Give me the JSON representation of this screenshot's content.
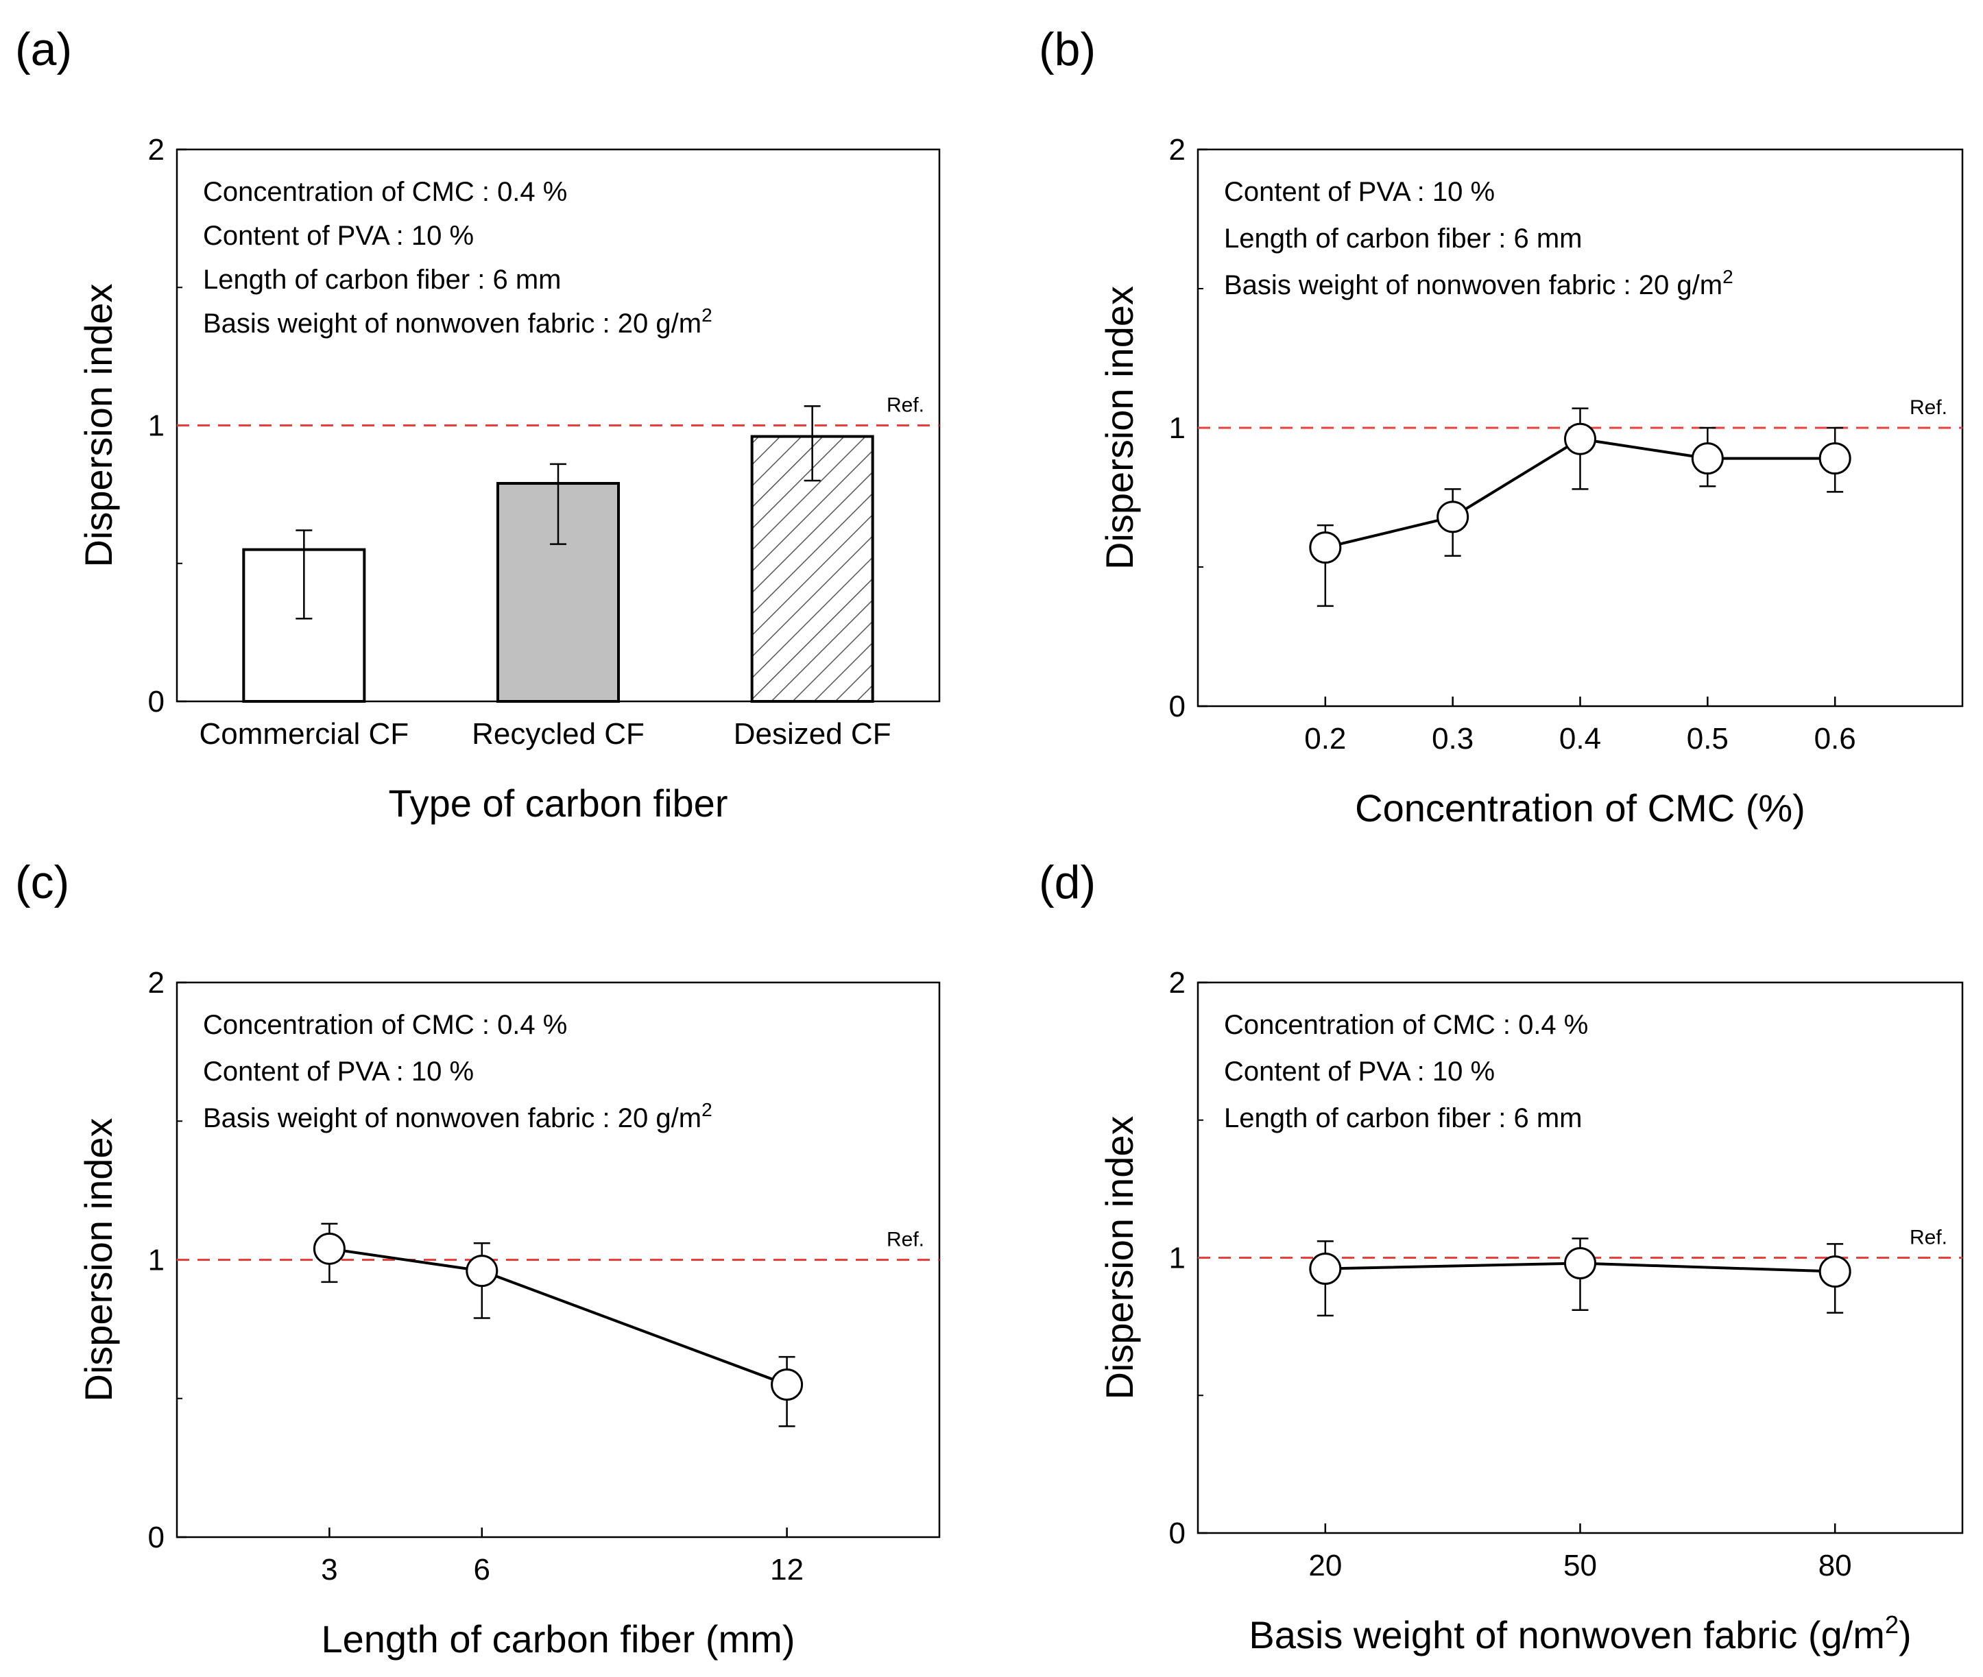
{
  "chart_data": [
    {
      "panel_label": "(a)",
      "type": "bar",
      "categories": [
        "Commercial CF",
        "Recycled CF",
        "Desized CF"
      ],
      "values": [
        0.55,
        0.79,
        0.96
      ],
      "errors": [
        [
          0.3,
          0.62
        ],
        [
          0.57,
          0.86
        ],
        [
          0.8,
          1.07
        ]
      ],
      "bar_styles": [
        "white",
        "gray",
        "hatched"
      ],
      "bar_colors": [
        "#ffffff",
        "#c0c0c0",
        "#ffffff"
      ],
      "xlabel": "Type of carbon fiber",
      "ylabel": "Dispersion index",
      "ylim": [
        0,
        2
      ],
      "yticks": [
        "0",
        "1",
        "2"
      ],
      "reference": {
        "value": 1,
        "label": "Ref.",
        "color": "#e8413c"
      },
      "annotations": [
        {
          "text": "Concentration of CMC : 0.4 %",
          "sup": ""
        },
        {
          "text": "Content of PVA : 10 %",
          "sup": ""
        },
        {
          "text": "Length of carbon fiber : 6 mm",
          "sup": ""
        },
        {
          "text": "Basis weight of nonwoven fabric : 20 g/m",
          "sup": "2"
        }
      ]
    },
    {
      "panel_label": "(b)",
      "type": "line",
      "x": [
        0.2,
        0.3,
        0.4,
        0.5,
        0.6
      ],
      "y": [
        0.57,
        0.68,
        0.96,
        0.89,
        0.89
      ],
      "errors": [
        [
          0.36,
          0.65
        ],
        [
          0.54,
          0.78
        ],
        [
          0.78,
          1.07
        ],
        [
          0.79,
          1.0
        ],
        [
          0.77,
          1.0
        ]
      ],
      "xticks": [
        "0.2",
        "0.3",
        "0.4",
        "0.5",
        "0.6"
      ],
      "xlim": [
        0.1,
        0.7
      ],
      "xlabel": "Concentration of CMC (%)",
      "ylabel": "Dispersion index",
      "ylim": [
        0,
        2
      ],
      "yticks": [
        "0",
        "1",
        "2"
      ],
      "reference": {
        "value": 1,
        "label": "Ref.",
        "color": "#e8413c"
      },
      "annotations": [
        {
          "text": "Content of PVA : 10 %",
          "sup": ""
        },
        {
          "text": "Length of carbon fiber : 6 mm",
          "sup": ""
        },
        {
          "text": "Basis weight of nonwoven fabric : 20 g/m",
          "sup": "2"
        }
      ]
    },
    {
      "panel_label": "(c)",
      "type": "line",
      "x": [
        3,
        6,
        12
      ],
      "y": [
        1.04,
        0.96,
        0.55
      ],
      "errors": [
        [
          0.92,
          1.13
        ],
        [
          0.79,
          1.06
        ],
        [
          0.4,
          0.65
        ]
      ],
      "xticks": [
        "3",
        "6",
        "12"
      ],
      "xlim": [
        0,
        15
      ],
      "xlabel": "Length of carbon fiber (mm)",
      "ylabel": "Dispersion index",
      "ylim": [
        0,
        2
      ],
      "yticks": [
        "0",
        "1",
        "2"
      ],
      "reference": {
        "value": 1,
        "label": "Ref.",
        "color": "#e8413c"
      },
      "annotations": [
        {
          "text": "Concentration of CMC : 0.4 %",
          "sup": ""
        },
        {
          "text": "Content of PVA : 10 %",
          "sup": ""
        },
        {
          "text": "Basis weight of nonwoven fabric : 20 g/m",
          "sup": "2"
        }
      ]
    },
    {
      "panel_label": "(d)",
      "type": "line",
      "x": [
        20,
        50,
        80
      ],
      "y": [
        0.96,
        0.98,
        0.95
      ],
      "errors": [
        [
          0.79,
          1.06
        ],
        [
          0.81,
          1.07
        ],
        [
          0.8,
          1.05
        ]
      ],
      "xticks": [
        "20",
        "50",
        "80"
      ],
      "xlim": [
        5,
        95
      ],
      "xlabel": "Basis weight of nonwoven fabric (g/m",
      "xlabel_sup": "2",
      "xlabel_tail": ")",
      "ylabel": "Dispersion index",
      "ylim": [
        0,
        2
      ],
      "yticks": [
        "0",
        "1",
        "2"
      ],
      "reference": {
        "value": 1,
        "label": "Ref.",
        "color": "#e8413c"
      },
      "annotations": [
        {
          "text": "Concentration of CMC : 0.4 %",
          "sup": ""
        },
        {
          "text": "Content of PVA : 10 %",
          "sup": ""
        },
        {
          "text": "Length of carbon fiber : 6 mm",
          "sup": ""
        }
      ]
    }
  ]
}
